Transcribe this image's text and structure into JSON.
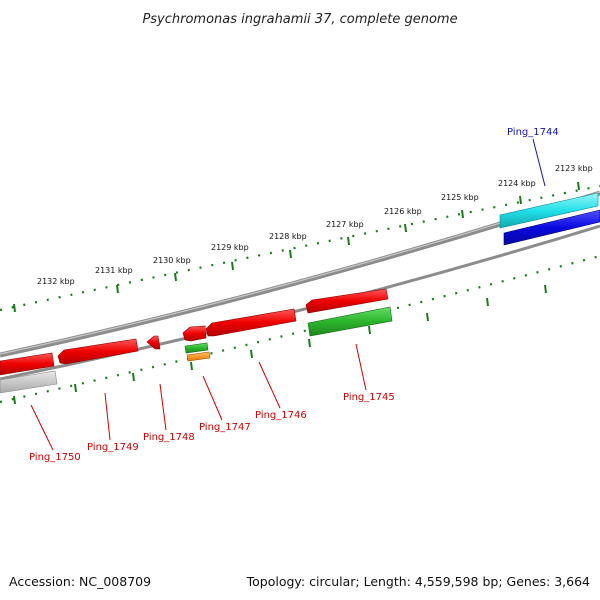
{
  "title": "Psychromonas ingrahamii 37, complete genome",
  "accession": "Accession: NC_008709",
  "topology": "Topology: circular; Length: 4,559,598 bp; Genes: 3,664",
  "kbp_labels": [
    "2123 kbp",
    "2124 kbp",
    "2125 kbp",
    "2126 kbp",
    "2127 kbp",
    "2128 kbp",
    "2129 kbp",
    "2130 kbp",
    "2131 kbp",
    "2132 kbp"
  ],
  "gene_labels": [
    {
      "id": "Ping_1744",
      "color": "#1515b4"
    },
    {
      "id": "Ping_1745",
      "color": "#cc0000"
    },
    {
      "id": "Ping_1746",
      "color": "#cc0000"
    },
    {
      "id": "Ping_1747",
      "color": "#cc0000"
    },
    {
      "id": "Ping_1748",
      "color": "#cc0000"
    },
    {
      "id": "Ping_1749",
      "color": "#cc0000"
    },
    {
      "id": "Ping_1750",
      "color": "#cc0000"
    }
  ],
  "colors": {
    "backbone": "#8a8a8a",
    "tick": "#1a7a1a",
    "cds_forward": "#ee0000",
    "cds_reverse": "#ee0000",
    "gc_skew_plus": "#2cb52c",
    "orange_feature": "#f08a00",
    "cyan_feature": "#22e0e8",
    "blue_feature": "#0a0ae0",
    "gray_feature": "#c0c0c0"
  }
}
